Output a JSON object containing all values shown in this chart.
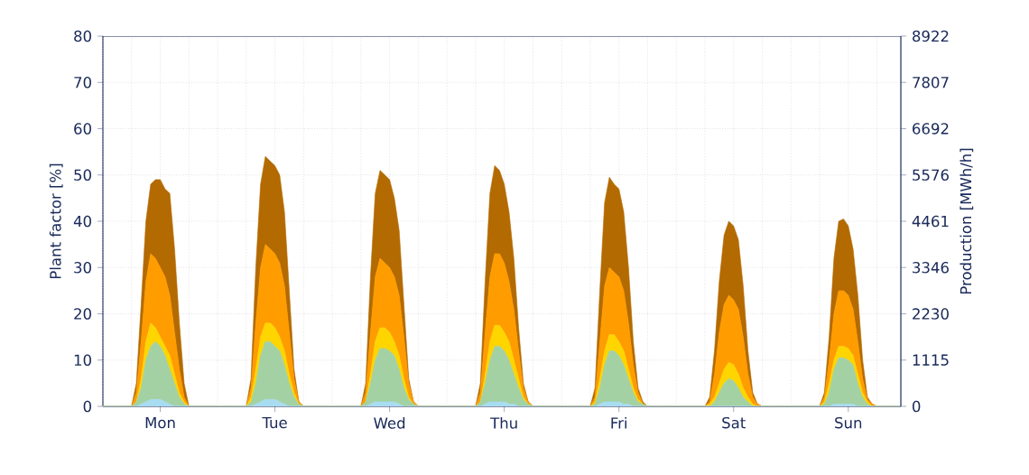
{
  "chart_data": {
    "type": "area",
    "stacked": true,
    "ylabel": "Plant factor [%]",
    "y2label": "Production [MWh/h]",
    "categories": [
      null,
      null,
      null,
      null,
      null,
      null,
      null,
      null,
      null,
      null,
      null,
      null,
      "Mon",
      null,
      null,
      null,
      null,
      null,
      null,
      null,
      null,
      null,
      null,
      null,
      null,
      null,
      null,
      null,
      null,
      null,
      null,
      null,
      null,
      null,
      null,
      null,
      "Tue",
      null,
      null,
      null,
      null,
      null,
      null,
      null,
      null,
      null,
      null,
      null,
      null,
      null,
      null,
      null,
      null,
      null,
      null,
      null,
      null,
      null,
      null,
      null,
      "Wed",
      null,
      null,
      null,
      null,
      null,
      null,
      null,
      null,
      null,
      null,
      null,
      null,
      null,
      null,
      null,
      null,
      null,
      null,
      null,
      null,
      null,
      null,
      null,
      "Thu",
      null,
      null,
      null,
      null,
      null,
      null,
      null,
      null,
      null,
      null,
      null,
      null,
      null,
      null,
      null,
      null,
      null,
      null,
      null,
      null,
      null,
      null,
      null,
      "Fri",
      null,
      null,
      null,
      null,
      null,
      null,
      null,
      null,
      null,
      null,
      null,
      null,
      null,
      null,
      null,
      null,
      null,
      null,
      null,
      null,
      null,
      null,
      null,
      "Sat",
      null,
      null,
      null,
      null,
      null,
      null,
      null,
      null,
      null,
      null,
      null,
      null,
      null,
      null,
      null,
      null,
      null,
      null,
      null,
      null,
      null,
      null,
      null,
      "Sun",
      null,
      null,
      null,
      null,
      null,
      null,
      null,
      null,
      null,
      null,
      null
    ],
    "ylim": [
      0,
      80
    ],
    "yticks": [
      0,
      10,
      20,
      30,
      40,
      50,
      60,
      70,
      80
    ],
    "y2lim": [
      0,
      8922
    ],
    "y2ticks": [
      0,
      1115,
      2230,
      3346,
      4461,
      5576,
      6692,
      7807,
      8922
    ],
    "grid": true,
    "series": [
      {
        "color": "#a8dcf0",
        "values": [
          0,
          0,
          0,
          0,
          0,
          0,
          0,
          0,
          0.5,
          1,
          1.5,
          1.5,
          1.5,
          1,
          0.5,
          0,
          0,
          0,
          0,
          0,
          0,
          0,
          0,
          0,
          0,
          0,
          0,
          0,
          0,
          0,
          0,
          0,
          0.5,
          1,
          1.5,
          1.5,
          1.5,
          1,
          0.5,
          0,
          0,
          0,
          0,
          0,
          0,
          0,
          0,
          0,
          0,
          0,
          0,
          0,
          0,
          0,
          0,
          0,
          0.5,
          1,
          1,
          1,
          1,
          1,
          0.5,
          0,
          0,
          0,
          0,
          0,
          0,
          0,
          0,
          0,
          0,
          0,
          0,
          0,
          0,
          0,
          0,
          0,
          0.5,
          1,
          1,
          1,
          1,
          0.5,
          0.5,
          0,
          0,
          0,
          0,
          0,
          0,
          0,
          0,
          0,
          0,
          0,
          0,
          0,
          0,
          0,
          0,
          0,
          0.5,
          1,
          1,
          1,
          1,
          0.5,
          0.5,
          0,
          0,
          0,
          0,
          0,
          0,
          0,
          0,
          0,
          0,
          0,
          0,
          0,
          0,
          0,
          0,
          0,
          0,
          0,
          0,
          0,
          0,
          0,
          0,
          0,
          0,
          0,
          0,
          0,
          0,
          0,
          0,
          0,
          0,
          0,
          0,
          0,
          0,
          0,
          0,
          0,
          0,
          0.5,
          0.5,
          0.5,
          0.5,
          0.5,
          0,
          0,
          0,
          0,
          0,
          0,
          0,
          0,
          0,
          0
        ]
      },
      {
        "color": "#a3d1a3",
        "values": [
          0,
          0,
          0,
          0,
          0,
          0,
          0,
          1,
          3.5,
          9,
          11.5,
          12.5,
          11.5,
          10,
          7.5,
          5,
          2,
          0.5,
          0,
          0,
          0,
          0,
          0,
          0,
          0,
          0,
          0,
          0,
          0,
          0,
          0,
          1,
          4.5,
          10,
          12.5,
          12.5,
          11.5,
          11,
          8.5,
          5,
          2,
          0.5,
          0,
          0,
          0,
          0,
          0,
          0,
          0,
          0,
          0,
          0,
          0,
          0,
          0,
          1,
          4.5,
          9,
          11.5,
          11.5,
          11,
          10,
          7.5,
          4,
          1.5,
          0.5,
          0,
          0,
          0,
          0,
          0,
          0,
          0,
          0,
          0,
          0,
          0,
          0,
          0,
          1,
          4.5,
          9,
          12,
          12,
          11,
          9.5,
          6.5,
          4,
          1.5,
          0.5,
          0,
          0,
          0,
          0,
          0,
          0,
          0,
          0,
          0,
          0,
          0,
          0,
          0,
          0.5,
          3.5,
          8,
          11,
          11,
          10,
          8.5,
          5.5,
          3,
          1,
          0.5,
          0,
          0,
          0,
          0,
          0,
          0,
          0,
          0,
          0,
          0,
          0,
          0,
          0,
          0,
          1,
          3,
          5,
          6,
          5.5,
          4,
          2,
          1,
          0,
          0,
          0,
          0,
          0,
          0,
          0,
          0,
          0,
          0,
          0,
          0,
          0,
          0,
          0,
          0.5,
          3,
          7.5,
          10,
          10,
          9.5,
          8.5,
          5,
          2,
          0.5,
          0,
          0,
          0,
          0,
          0,
          0,
          0
        ]
      },
      {
        "color": "#ffd500",
        "values": [
          0,
          0,
          0,
          0,
          0,
          0,
          0,
          0,
          2,
          4,
          5,
          3,
          2,
          2,
          3,
          2,
          1,
          0.5,
          0,
          0,
          0,
          0,
          0,
          0,
          0,
          0,
          0,
          0,
          0,
          0,
          0,
          1,
          3,
          4,
          4,
          4,
          4,
          3,
          3,
          2,
          1,
          0,
          0,
          0,
          0,
          0,
          0,
          0,
          0,
          0,
          0,
          0,
          0,
          0,
          0,
          0,
          2,
          4,
          4.5,
          4.5,
          4,
          3,
          3,
          2,
          0.5,
          0,
          0,
          0,
          0,
          0,
          0,
          0,
          0,
          0,
          0,
          0,
          0,
          0,
          0,
          0,
          2,
          4,
          4.5,
          4.5,
          4,
          4,
          3,
          2,
          0.5,
          0,
          0,
          0,
          0,
          0,
          0,
          0,
          0,
          0,
          0,
          0,
          0,
          0,
          0,
          0.5,
          2,
          3,
          3.5,
          3.5,
          3,
          3,
          2,
          1,
          0.5,
          0,
          0,
          0,
          0,
          0,
          0,
          0,
          0,
          0,
          0,
          0,
          0,
          0,
          0,
          0.5,
          1,
          2,
          3,
          3.5,
          3.5,
          3,
          2,
          1,
          0.5,
          0,
          0,
          0,
          0,
          0,
          0,
          0,
          0,
          0,
          0,
          0,
          0,
          0,
          0,
          0.5,
          2,
          2,
          2.5,
          2.5,
          2.5,
          2,
          2,
          1,
          0.5,
          0,
          0,
          0,
          0,
          0,
          0,
          0
        ]
      },
      {
        "color": "#ff9c00",
        "values": [
          0,
          0,
          0,
          0,
          0,
          0,
          0,
          2,
          8,
          13,
          15,
          15,
          15,
          15,
          13,
          9,
          5,
          1,
          0,
          0,
          0,
          0,
          0,
          0,
          0,
          0,
          0,
          0,
          0,
          0,
          0,
          2,
          10,
          15,
          17,
          16,
          16,
          16,
          14,
          9,
          3,
          0.5,
          0,
          0,
          0,
          0,
          0,
          0,
          0,
          0,
          0,
          0,
          0,
          0,
          0,
          2,
          9,
          14,
          15,
          14,
          14,
          14,
          13,
          9,
          3,
          0.5,
          0,
          0,
          0,
          0,
          0,
          0,
          0,
          0,
          0,
          0,
          0,
          0,
          0,
          2,
          9,
          14,
          15.5,
          15.5,
          15,
          13,
          11,
          6,
          2,
          0.5,
          0,
          0,
          0,
          0,
          0,
          0,
          0,
          0,
          0,
          0,
          0,
          0,
          0,
          1,
          8,
          14,
          14.5,
          13.5,
          14,
          13,
          10,
          5,
          1.5,
          0,
          0,
          0,
          0,
          0,
          0,
          0,
          0,
          0,
          0,
          0,
          0,
          0,
          0,
          0.5,
          5,
          11,
          14,
          14.5,
          14,
          14,
          11,
          5,
          1.5,
          0.5,
          0,
          0,
          0,
          0,
          0,
          0,
          0,
          0,
          0,
          0,
          0,
          0,
          0,
          1,
          5,
          10,
          12,
          12,
          11.5,
          10,
          7,
          3,
          0.5,
          0.5,
          0,
          0,
          0,
          0,
          0,
          0
        ]
      },
      {
        "color": "#b36a00",
        "values": [
          0,
          0,
          0,
          0,
          0,
          0,
          0,
          2,
          8,
          13,
          15,
          17,
          19,
          19,
          22,
          18,
          10,
          3,
          0,
          0,
          0,
          0,
          0,
          0,
          0,
          0,
          0,
          0,
          0,
          0,
          0,
          2,
          12,
          18,
          19,
          19,
          19,
          19,
          16,
          9,
          2,
          0,
          0,
          0,
          0,
          0,
          0,
          0,
          0,
          0,
          0,
          0,
          0,
          0,
          0,
          2,
          12,
          18,
          19,
          19,
          19,
          17,
          14,
          7,
          1,
          0,
          0,
          0,
          0,
          0,
          0,
          0,
          0,
          0,
          0,
          0,
          0,
          0,
          0,
          2,
          11,
          18,
          19,
          18,
          17,
          15,
          11,
          5,
          1,
          0,
          0,
          0,
          0,
          0,
          0,
          0,
          0,
          0,
          0,
          0,
          0,
          0,
          0,
          2,
          11,
          18,
          19.5,
          19,
          19,
          17,
          12,
          5,
          1,
          0.5,
          0,
          0,
          0,
          0,
          0,
          0,
          0,
          0,
          0,
          0,
          0,
          0,
          0,
          1,
          5,
          11,
          15,
          16,
          16,
          15,
          11,
          5,
          1,
          0,
          0,
          0,
          0,
          0,
          0,
          0,
          0,
          0,
          0,
          0,
          0,
          0,
          0,
          1,
          5,
          12,
          15,
          15.5,
          15,
          13,
          10,
          4,
          0.5,
          0,
          0,
          0,
          0,
          0,
          0,
          0
        ]
      }
    ]
  }
}
